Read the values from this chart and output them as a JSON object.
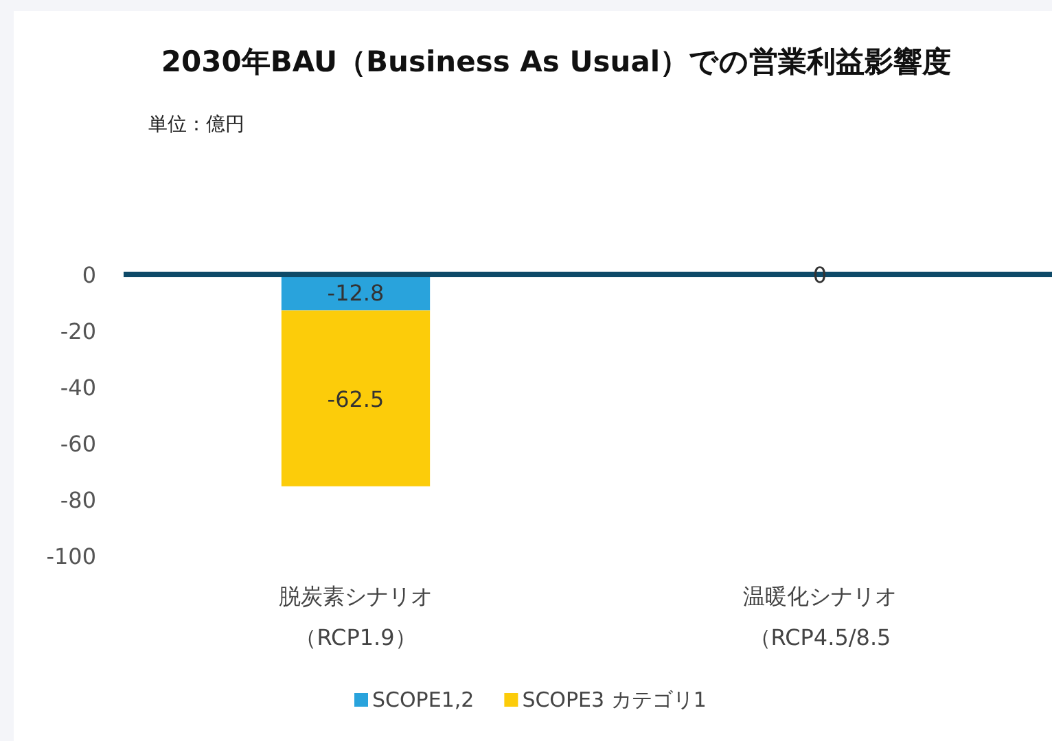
{
  "chart_data": {
    "type": "bar",
    "stacked": true,
    "title": "2030年BAU（Business As Usual）での営業利益影響度",
    "subtitle": "単位：億円",
    "categories": [
      "脱炭素シナリオ（RCP1.9）",
      "温暖化シナリオ（RCP4.5/8.5"
    ],
    "series": [
      {
        "name": "SCOPE1,2",
        "color": "#29a3dc",
        "values": [
          -12.8,
          0
        ],
        "value_labels": [
          "-12.8",
          "0"
        ]
      },
      {
        "name": "SCOPE3 カテゴリ1",
        "color": "#fccc0a",
        "values": [
          -62.5,
          0
        ],
        "value_labels": [
          "-62.5",
          null
        ]
      }
    ],
    "ylim": [
      -100,
      0
    ],
    "yticks": [
      0,
      -20,
      -40,
      -60,
      -80,
      -100
    ],
    "grid": false,
    "legend": "bottom"
  }
}
